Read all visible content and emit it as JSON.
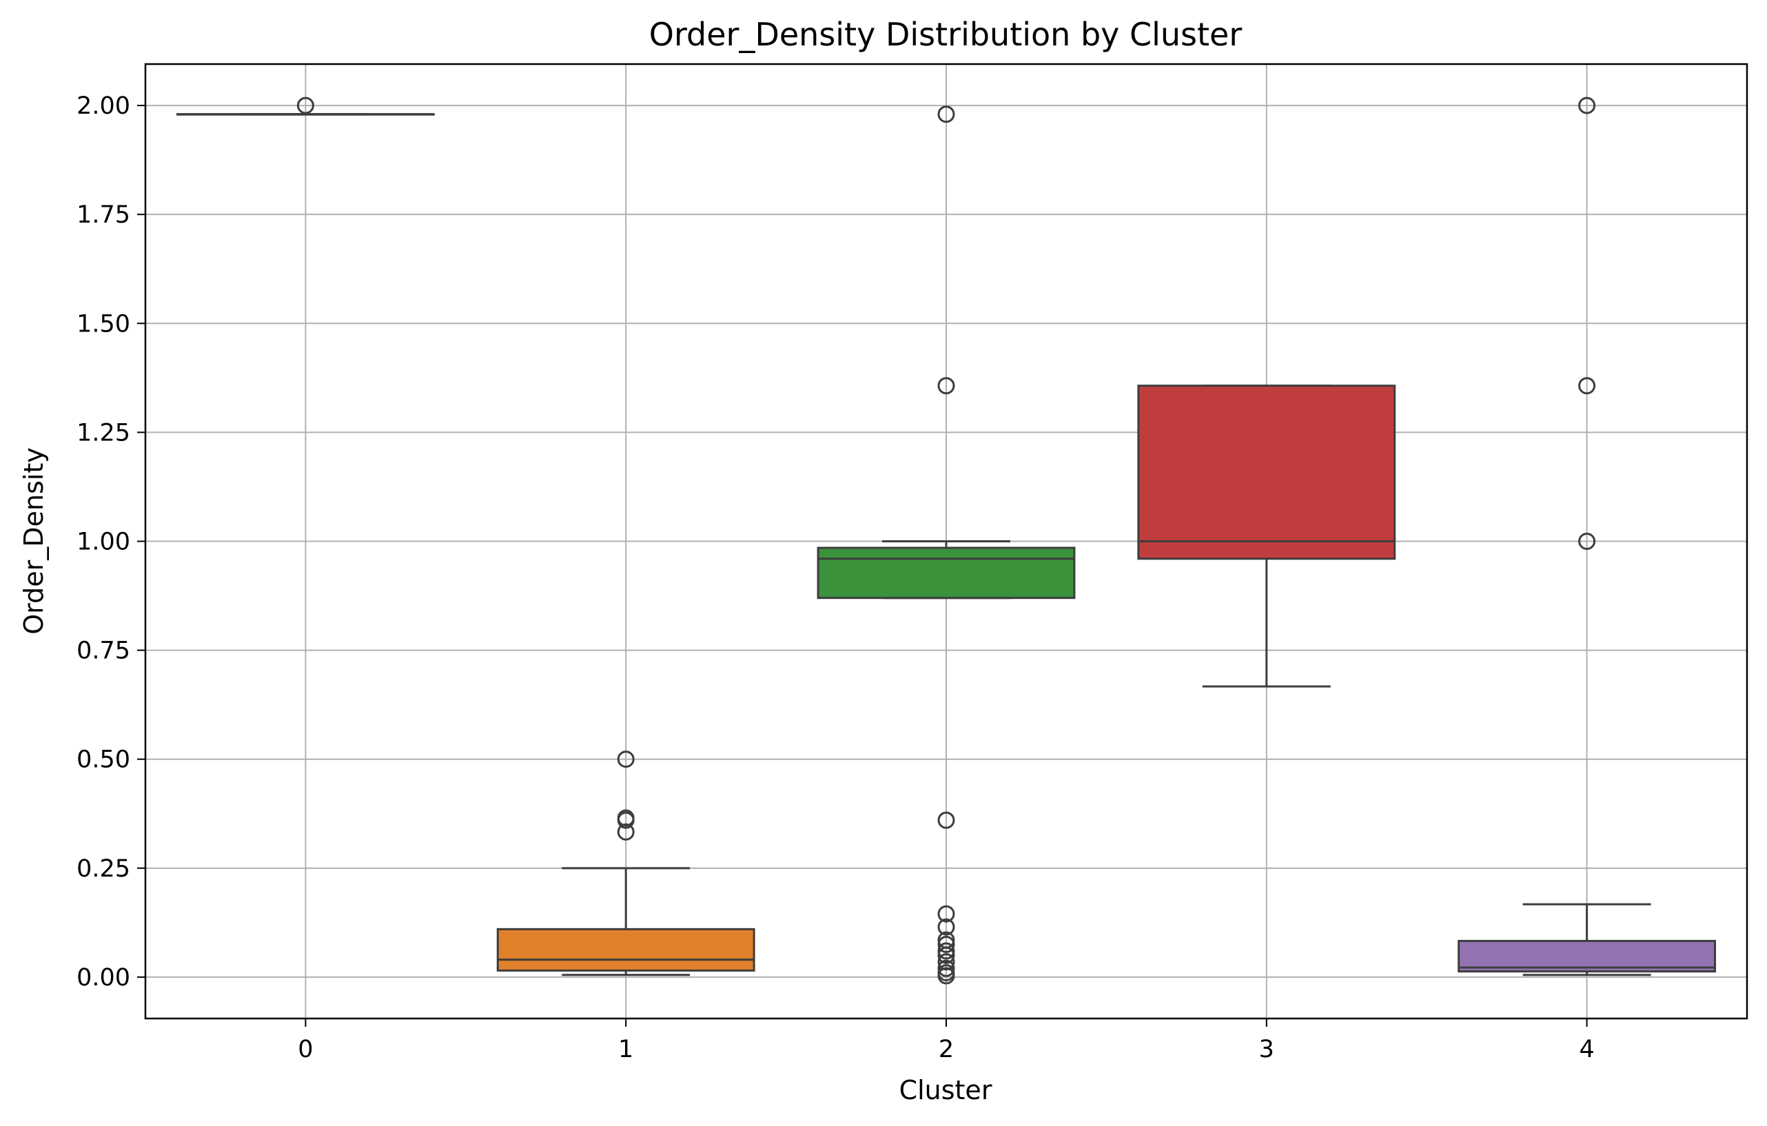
{
  "chart_data": {
    "type": "box",
    "title": "Order_Density Distribution by Cluster",
    "xlabel": "Cluster",
    "ylabel": "Order_Density",
    "categories": [
      "0",
      "1",
      "2",
      "3",
      "4"
    ],
    "ylim": [
      -0.095,
      2.095
    ],
    "yticks": [
      0.0,
      0.25,
      0.5,
      0.75,
      1.0,
      1.25,
      1.5,
      1.75,
      2.0
    ],
    "ytick_labels": [
      "0.00",
      "0.25",
      "0.50",
      "0.75",
      "1.00",
      "1.25",
      "1.50",
      "1.75",
      "2.00"
    ],
    "grid": true,
    "series": [
      {
        "category": "0",
        "color": "#1f77b4",
        "whisker_low": 1.98,
        "q1": 1.98,
        "median": 1.98,
        "q3": 1.98,
        "whisker_high": 1.98,
        "outliers": [
          2.0
        ]
      },
      {
        "category": "1",
        "color": "#e1812c",
        "whisker_low": 0.005,
        "q1": 0.015,
        "median": 0.04,
        "q3": 0.11,
        "whisker_high": 0.25,
        "outliers": [
          0.333,
          0.36,
          0.365,
          0.5
        ]
      },
      {
        "category": "2",
        "color": "#3a923a",
        "whisker_low": 0.87,
        "q1": 0.87,
        "median": 0.96,
        "q3": 0.985,
        "whisker_high": 1.0,
        "outliers": [
          0.003,
          0.01,
          0.02,
          0.035,
          0.05,
          0.06,
          0.075,
          0.085,
          0.115,
          0.145,
          0.36,
          1.357,
          1.98
        ]
      },
      {
        "category": "3",
        "color": "#c03d3e",
        "whisker_low": 0.667,
        "q1": 0.96,
        "median": 1.0,
        "q3": 1.357,
        "whisker_high": 1.357,
        "outliers": []
      },
      {
        "category": "4",
        "color": "#9372b2",
        "whisker_low": 0.005,
        "q1": 0.013,
        "median": 0.022,
        "q3": 0.083,
        "whisker_high": 0.167,
        "outliers": [
          1.0,
          1.357,
          2.0
        ]
      }
    ]
  }
}
